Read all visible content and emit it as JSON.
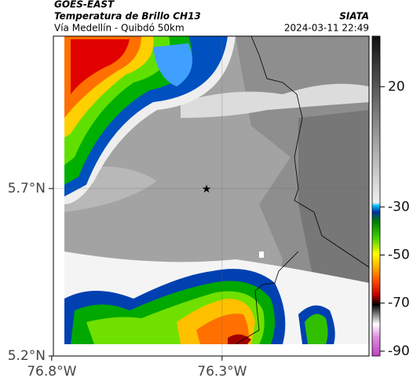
{
  "header": {
    "title": "GOES-EAST",
    "subtitle": "Temperatura de Brillo CH13",
    "route": "Vía Medellín - Quibdó 50km",
    "source": "SIATA",
    "datetime": "2024-03-11 22:49"
  },
  "map": {
    "xlim": [
      -76.795,
      -75.869
    ],
    "ylim": [
      5.2,
      6.155
    ],
    "xticks": [
      {
        "value": -76.8,
        "label": "76.8°W"
      },
      {
        "value": -76.3,
        "label": "76.3°W"
      }
    ],
    "yticks": [
      {
        "value": 5.2,
        "label": "5.2°N"
      },
      {
        "value": 5.7,
        "label": "5.7°N"
      }
    ]
  },
  "colorbar": {
    "lim": [
      -92,
      41
    ],
    "ticks": [
      20,
      -30,
      -50,
      -70,
      -90
    ]
  }
}
